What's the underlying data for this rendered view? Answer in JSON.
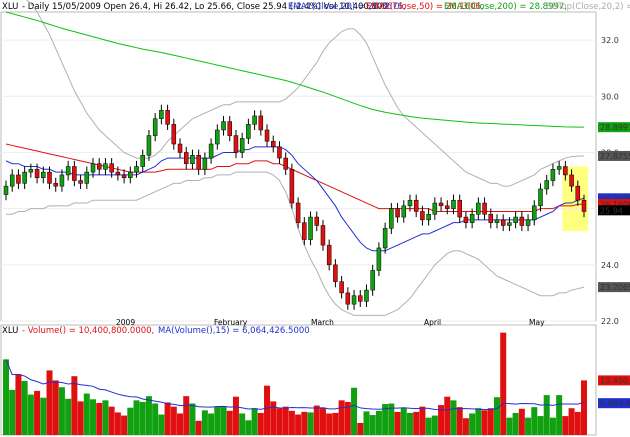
{
  "header": {
    "symbol": "XLU",
    "info": "- Daily 15/05/2009 Open 26.4, Hi 26.42, Lo 25.66, Close 25.94 (-2.4%) Vol 10,400,800",
    "ema1": "EMA1(Close,20) = 26.3676,",
    "ema2": "EMA2(Close,50) = 26.1606,",
    "ema3": "EMA3(Close,200) = 28.8997,",
    "bb": "BBTop(Close,20,2) = 27.87"
  },
  "volume_header": {
    "symbol": "XLU",
    "vol": "- Volume() = 10,400,800.0000,",
    "ma": "MA(Volume(),15) = 6,064,426.5000"
  },
  "price_axis": {
    "ticks": [
      "32.0",
      "30.0",
      "28.0",
      "26.0",
      "24.0",
      "22.0"
    ],
    "labels": [
      {
        "text": "28.8997",
        "color": "#10a010"
      },
      {
        "text": "27.8755",
        "color": "#555555"
      },
      {
        "text": "26.3676",
        "color": "#2030d0"
      },
      {
        "text": "26.1606",
        "color": "#e01010"
      },
      {
        "text": "25.94",
        "color": "#000000"
      },
      {
        "text": "23.2065",
        "color": "#555555"
      }
    ]
  },
  "volume_axis": {
    "labels": [
      {
        "text": "10,400,800",
        "color": "#e01010"
      },
      {
        "text": "6,064,426",
        "color": "#2030d0"
      }
    ]
  },
  "date_labels": [
    "2009",
    "February",
    "March",
    "April",
    "May"
  ],
  "colors": {
    "up": "#10a010",
    "down": "#e01010",
    "ema20": "#2030d0",
    "ema50": "#e01010",
    "ema200": "#10c010",
    "bb": "#b0b0b0",
    "highlight": "#ffff80"
  },
  "chart_data": {
    "type": "candlestick",
    "title": "XLU - Daily 15/05/2009",
    "ylim": [
      22,
      33
    ],
    "x_start": "2008-12-01",
    "ohlc_close": [
      26.8,
      27.2,
      26.9,
      27.3,
      27.4,
      27.1,
      27.3,
      26.9,
      26.8,
      27.2,
      27.5,
      27.0,
      26.9,
      27.3,
      27.6,
      27.4,
      27.6,
      27.3,
      27.2,
      27.1,
      27.3,
      27.5,
      27.9,
      28.6,
      29.2,
      29.5,
      29.0,
      28.3,
      28.0,
      27.6,
      27.9,
      27.4,
      27.8,
      28.3,
      28.8,
      29.1,
      28.6,
      28.0,
      28.5,
      29.0,
      29.3,
      28.8,
      28.4,
      28.2,
      27.8,
      27.4,
      26.2,
      25.5,
      24.9,
      25.7,
      25.4,
      24.7,
      24.0,
      23.4,
      23.0,
      22.6,
      22.9,
      22.7,
      23.1,
      23.8,
      24.6,
      25.3,
      26.0,
      25.7,
      26.1,
      26.3,
      25.9,
      25.6,
      25.8,
      26.2,
      26.1,
      26.0,
      26.3,
      25.7,
      25.5,
      25.8,
      26.2,
      25.8,
      25.5,
      25.6,
      25.4,
      25.5,
      25.7,
      25.4,
      25.6,
      26.1,
      26.7,
      27.0,
      27.4,
      27.5,
      27.2,
      26.8,
      26.3,
      25.9
    ],
    "volume_millions": [
      14.4,
      8.6,
      11.6,
      10.3,
      7.7,
      8.4,
      7.1,
      12.3,
      10.4,
      9.1,
      6.9,
      11.2,
      6.4,
      7.9,
      6.8,
      6.1,
      6.6,
      5.4,
      4.3,
      3.7,
      5.2,
      6.6,
      6.3,
      7.4,
      6.0,
      3.9,
      6.2,
      5.4,
      4.1,
      7.4,
      6.0,
      2.7,
      4.7,
      4.1,
      5.4,
      5.5,
      4.6,
      7.3,
      4.1,
      2.8,
      5.1,
      4.2,
      9.4,
      6.4,
      5.1,
      5.4,
      4.6,
      3.9,
      4.4,
      4.3,
      5.6,
      5.2,
      4.1,
      4.2,
      6.6,
      6.3,
      9.0,
      2.3,
      4.5,
      3.8,
      4.6,
      5.9,
      6.0,
      4.4,
      5.2,
      4.2,
      4.4,
      5.4,
      3.3,
      3.7,
      5.7,
      7.3,
      6.6,
      5.3,
      3.2,
      4.1,
      5.1,
      4.7,
      5.1,
      7.2,
      19.5,
      3.3,
      4.2,
      5.0,
      3.3,
      5.3,
      3.6,
      7.6,
      3.3,
      7.6,
      3.6,
      5.1,
      4.4,
      10.4
    ],
    "ema20": [
      27.7,
      27.6,
      27.6,
      27.5,
      27.5,
      27.5,
      27.4,
      27.4,
      27.3,
      27.3,
      27.3,
      27.2,
      27.2,
      27.2,
      27.2,
      27.2,
      27.2,
      27.2,
      27.2,
      27.2,
      27.2,
      27.2,
      27.3,
      27.4,
      27.5,
      27.7,
      27.8,
      27.8,
      27.8,
      27.8,
      27.8,
      27.8,
      27.8,
      27.8,
      27.9,
      28.0,
      28.0,
      28.0,
      28.1,
      28.1,
      28.2,
      28.2,
      28.2,
      28.2,
      28.2,
      28.1,
      27.9,
      27.6,
      27.4,
      27.2,
      27.0,
      26.7,
      26.4,
      26.1,
      25.7,
      25.4,
      25.1,
      24.8,
      24.6,
      24.5,
      24.5,
      24.5,
      24.6,
      24.7,
      24.8,
      24.9,
      25.0,
      25.1,
      25.1,
      25.2,
      25.3,
      25.4,
      25.5,
      25.5,
      25.6,
      25.6,
      25.6,
      25.6,
      25.6,
      25.6,
      25.6,
      25.6,
      25.6,
      25.6,
      25.6,
      25.6,
      25.7,
      25.8,
      25.9,
      26.1,
      26.2,
      26.2,
      26.3,
      26.37
    ],
    "ema50": [
      28.3,
      28.25,
      28.2,
      28.15,
      28.1,
      28.05,
      28.0,
      27.95,
      27.9,
      27.85,
      27.8,
      27.75,
      27.7,
      27.65,
      27.6,
      27.55,
      27.5,
      27.45,
      27.4,
      27.35,
      27.3,
      27.3,
      27.3,
      27.3,
      27.3,
      27.35,
      27.4,
      27.4,
      27.4,
      27.4,
      27.4,
      27.4,
      27.4,
      27.4,
      27.5,
      27.5,
      27.5,
      27.6,
      27.6,
      27.6,
      27.7,
      27.7,
      27.7,
      27.6,
      27.6,
      27.5,
      27.4,
      27.3,
      27.2,
      27.1,
      27.0,
      26.9,
      26.8,
      26.7,
      26.6,
      26.5,
      26.4,
      26.3,
      26.2,
      26.1,
      26.0,
      26.0,
      26.0,
      26.0,
      26.0,
      26.0,
      26.0,
      26.0,
      26.0,
      25.9,
      25.9,
      25.9,
      25.9,
      25.9,
      25.9,
      25.9,
      25.9,
      25.9,
      25.9,
      25.9,
      25.9,
      25.9,
      25.9,
      25.9,
      25.9,
      25.9,
      26.0,
      26.0,
      26.0,
      26.1,
      26.1,
      26.1,
      26.15,
      26.16
    ],
    "ema200": [
      33.0,
      32.94,
      32.88,
      32.82,
      32.76,
      32.7,
      32.63,
      32.56,
      32.49,
      32.42,
      32.36,
      32.3,
      32.24,
      32.18,
      32.12,
      32.06,
      32.0,
      31.94,
      31.88,
      31.83,
      31.78,
      31.73,
      31.68,
      31.64,
      31.6,
      31.56,
      31.51,
      31.46,
      31.41,
      31.36,
      31.31,
      31.26,
      31.21,
      31.16,
      31.11,
      31.06,
      31.01,
      30.96,
      30.91,
      30.86,
      30.81,
      30.76,
      30.71,
      30.66,
      30.61,
      30.56,
      30.5,
      30.43,
      30.36,
      30.29,
      30.22,
      30.15,
      30.07,
      29.99,
      29.91,
      29.83,
      29.75,
      29.67,
      29.6,
      29.53,
      29.48,
      29.43,
      29.39,
      29.35,
      29.32,
      29.28,
      29.25,
      29.22,
      29.2,
      29.18,
      29.16,
      29.14,
      29.12,
      29.1,
      29.08,
      29.06,
      29.05,
      29.04,
      29.03,
      29.02,
      29.01,
      29.0,
      28.99,
      28.98,
      28.97,
      28.96,
      28.95,
      28.94,
      28.93,
      28.92,
      28.91,
      28.905,
      28.9,
      28.8997
    ],
    "bb_top": [
      34.0,
      33.9,
      33.7,
      33.5,
      33.3,
      33.0,
      32.6,
      32.2,
      31.7,
      31.2,
      30.7,
      30.2,
      29.8,
      29.4,
      29.1,
      28.8,
      28.6,
      28.4,
      28.2,
      28.0,
      27.9,
      27.8,
      27.8,
      27.8,
      27.9,
      28.1,
      28.4,
      28.6,
      28.8,
      29.0,
      29.2,
      29.3,
      29.4,
      29.5,
      29.6,
      29.7,
      29.7,
      29.8,
      29.8,
      29.8,
      29.8,
      29.8,
      29.8,
      29.8,
      29.8,
      29.9,
      30.1,
      30.3,
      30.6,
      30.9,
      31.2,
      31.6,
      31.9,
      32.1,
      32.3,
      32.4,
      32.4,
      32.2,
      31.9,
      31.4,
      30.9,
      30.4,
      30.0,
      29.6,
      29.3,
      29.1,
      28.9,
      28.7,
      28.5,
      28.3,
      28.1,
      27.9,
      27.7,
      27.5,
      27.3,
      27.2,
      27.1,
      27.0,
      26.9,
      26.9,
      26.8,
      26.8,
      26.9,
      27.0,
      27.1,
      27.2,
      27.4,
      27.5,
      27.6,
      27.7,
      27.8,
      27.85,
      27.87,
      27.8755
    ],
    "bb_bot": [
      25.8,
      25.8,
      25.9,
      25.9,
      26.0,
      26.0,
      26.0,
      26.1,
      26.1,
      26.1,
      26.1,
      26.2,
      26.2,
      26.2,
      26.3,
      26.3,
      26.3,
      26.3,
      26.3,
      26.3,
      26.3,
      26.3,
      26.4,
      26.5,
      26.6,
      26.7,
      26.8,
      26.9,
      26.9,
      27.0,
      27.0,
      27.0,
      27.1,
      27.1,
      27.2,
      27.2,
      27.2,
      27.3,
      27.3,
      27.3,
      27.3,
      27.3,
      27.3,
      27.2,
      27.0,
      26.6,
      26.0,
      25.3,
      24.7,
      24.2,
      23.8,
      23.3,
      22.9,
      22.6,
      22.4,
      22.3,
      22.2,
      22.2,
      22.2,
      22.2,
      22.2,
      22.2,
      22.3,
      22.4,
      22.6,
      22.8,
      23.1,
      23.4,
      23.7,
      24.0,
      24.2,
      24.4,
      24.5,
      24.5,
      24.4,
      24.3,
      24.2,
      24.0,
      23.8,
      23.6,
      23.5,
      23.4,
      23.3,
      23.2,
      23.1,
      23.0,
      22.9,
      22.9,
      22.9,
      23.0,
      23.0,
      23.1,
      23.15,
      23.2065
    ]
  }
}
